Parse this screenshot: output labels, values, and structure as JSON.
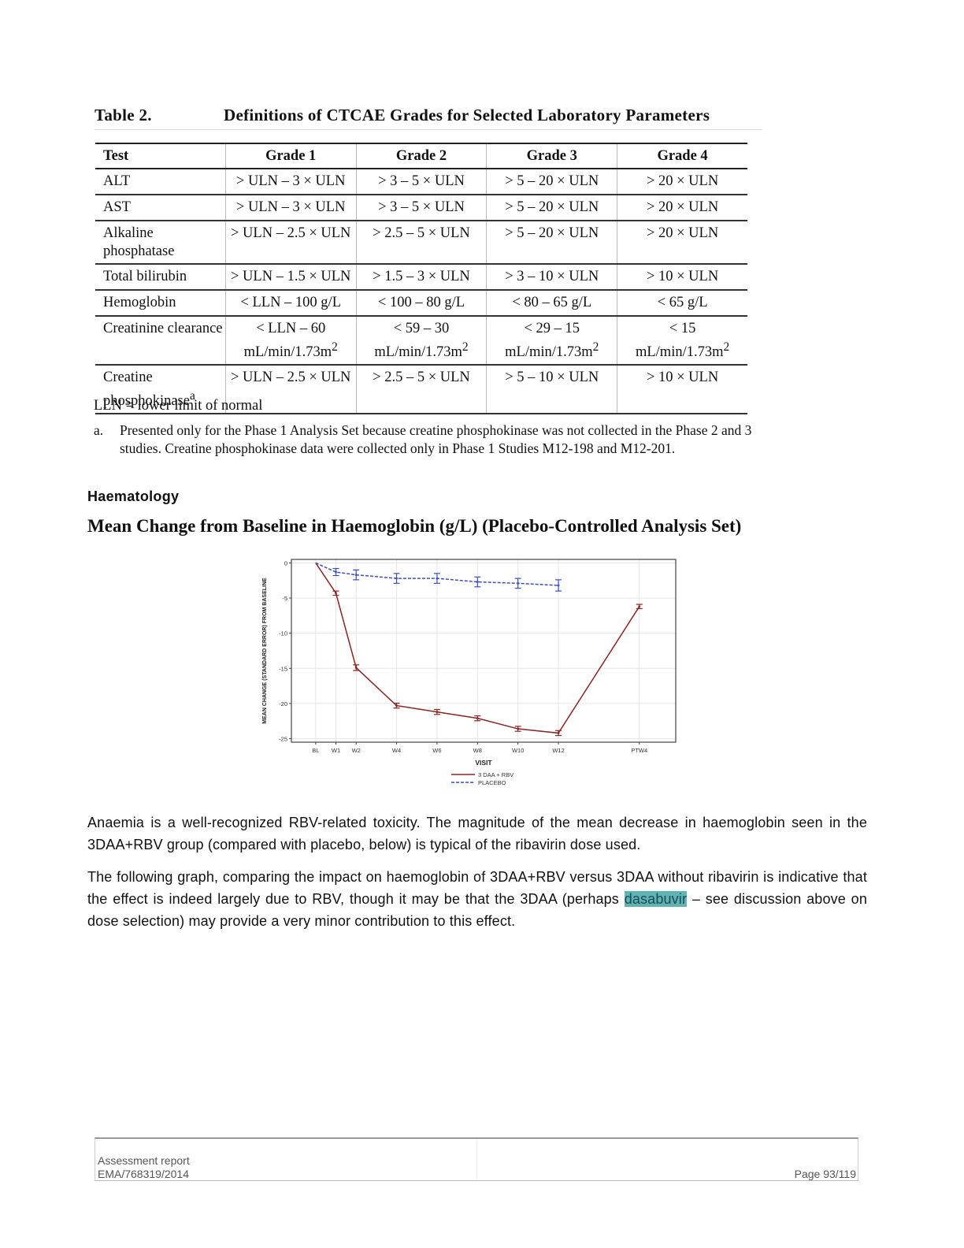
{
  "table": {
    "number": "Table 2.",
    "title": "Definitions of CTCAE Grades for Selected Laboratory Parameters",
    "headers": [
      "Test",
      "Grade 1",
      "Grade 2",
      "Grade 3",
      "Grade 4"
    ],
    "rows": [
      {
        "test": "ALT",
        "g1": "> ULN – 3 × ULN",
        "g2": "> 3 – 5 × ULN",
        "g3": "> 5 – 20 × ULN",
        "g4": "> 20 × ULN"
      },
      {
        "test": "AST",
        "g1": "> ULN – 3 × ULN",
        "g2": "> 3 – 5 × ULN",
        "g3": "> 5 – 20 × ULN",
        "g4": "> 20 × ULN"
      },
      {
        "test": "Alkaline",
        "test2": "phosphatase",
        "g1": "> ULN – 2.5 × ULN",
        "g2": "> 2.5 – 5 × ULN",
        "g3": "> 5 – 20 × ULN",
        "g4": "> 20 × ULN"
      },
      {
        "test": "Total bilirubin",
        "g1": "> ULN – 1.5 × ULN",
        "g2": "> 1.5 – 3 × ULN",
        "g3": "> 3 – 10 × ULN",
        "g4": "> 10 × ULN"
      },
      {
        "test": "Hemoglobin",
        "g1": "< LLN – 100 g/L",
        "g2": "< 100 – 80 g/L",
        "g3": "< 80 – 65 g/L",
        "g4": "< 65 g/L"
      },
      {
        "test": "Creatinine clearance",
        "g1": "< LLN – 60",
        "g1b": "mL/min/1.73m",
        "g2": "< 59 – 30",
        "g2b": "mL/min/1.73m",
        "g3": "< 29 – 15",
        "g3b": "mL/min/1.73m",
        "g4": "< 15",
        "g4b": "mL/min/1.73m",
        "sup": "2"
      },
      {
        "test": "Creatine",
        "test2": "phosphokinase",
        "test2_sup": "a",
        "g1": "> ULN – 2.5 × ULN",
        "g2": "> 2.5 – 5 × ULN",
        "g3": "> 5 – 10 × ULN",
        "g4": "> 10 × ULN"
      }
    ],
    "lln_note": "LLN = lower limit of normal",
    "footnote_mark": "a.",
    "footnote_text": "Presented only for the Phase 1 Analysis Set because creatine phosphokinase was not collected in the Phase 2 and 3 studies.  Creatine phosphokinase data were collected only in Phase 1 Studies M12-198 and M12-201."
  },
  "section_heading": "Haematology",
  "figure_title": "Mean Change from Baseline in Haemoglobin (g/L) (Placebo-Controlled Analysis Set)",
  "chart_data": {
    "type": "line",
    "xlabel": "VISIT",
    "ylabel": "MEAN CHANGE (STANDARD ERROR) FROM BASELINE",
    "categories": [
      "BL",
      "W1",
      "W2",
      "W4",
      "W6",
      "W8",
      "W10",
      "W12",
      "PTW4"
    ],
    "x_weeks": [
      0,
      1,
      2,
      4,
      6,
      8,
      10,
      12,
      16
    ],
    "yticks": [
      0,
      -5,
      -10,
      -15,
      -20,
      -25
    ],
    "ylim": [
      -25.5,
      0.5
    ],
    "grid": true,
    "legend_position": "bottom",
    "series": [
      {
        "name": "3 DAA + RBV",
        "color": "#8b2323",
        "style": "solid",
        "values": [
          0,
          -4.3,
          -14.9,
          -20.3,
          -21.2,
          -22.1,
          -23.6,
          -24.2,
          -6.2
        ],
        "se": [
          0,
          0.3,
          0.4,
          0.35,
          0.35,
          0.35,
          0.35,
          0.35,
          0.3
        ]
      },
      {
        "name": "PLACEBO",
        "color": "#3a4fc0",
        "style": "dashed",
        "values": [
          0,
          -1.3,
          -1.7,
          -2.2,
          -2.2,
          -2.7,
          -2.9,
          -3.2,
          null
        ],
        "se": [
          0,
          0.5,
          0.7,
          0.7,
          0.7,
          0.7,
          0.7,
          0.8,
          null
        ]
      }
    ]
  },
  "paragraph1": "Anaemia is a well-recognized RBV-related toxicity. The magnitude of the mean decrease in haemoglobin seen in the 3DAA+RBV group (compared with placebo, below) is typical of the ribavirin dose used.",
  "paragraph2": {
    "before": "The following graph, comparing the impact on haemoglobin of 3DAA+RBV versus 3DAA without ribavirin is indicative that the effect is indeed largely due to RBV, though it may be that the 3DAA (perhaps ",
    "highlight": "dasabuvir",
    "after": " – see discussion above on dose selection) may provide a very minor contribution to this effect."
  },
  "footer": {
    "line1": "Assessment report",
    "line2": "EMA/768319/2014",
    "page": "Page 93/119"
  }
}
